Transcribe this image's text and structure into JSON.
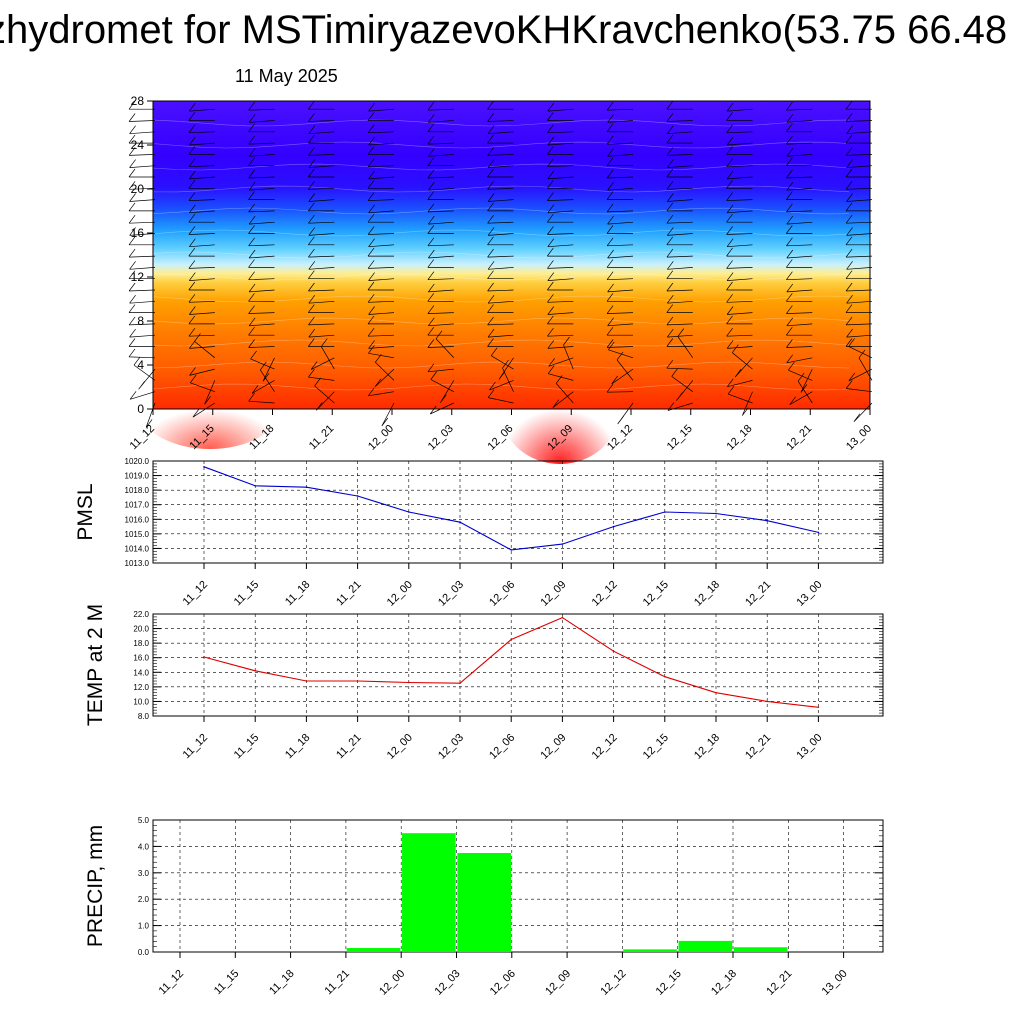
{
  "header": {
    "title": "zhydromet for MSTimiryazevoKHKravchenko(53.75 66.48",
    "date": "11 May 2025"
  },
  "chart_data": [
    {
      "type": "heatmap",
      "name": "vertical-cross-section",
      "categories": [
        "11_12",
        "11_15",
        "11_18",
        "11_21",
        "12_00",
        "12_03",
        "12_06",
        "12_09",
        "12_12",
        "12_15",
        "12_18",
        "12_21",
        "13_00"
      ],
      "yticks": [
        0,
        4,
        8,
        12,
        16,
        20,
        24,
        28
      ],
      "ylim": [
        0,
        28
      ],
      "colors": {
        "low": "#ff2a00",
        "mid": "#ffee90",
        "high": "#3300ff"
      }
    },
    {
      "type": "line",
      "ylabel": "PMSL",
      "categories": [
        "11_12",
        "11_15",
        "11_18",
        "11_21",
        "12_00",
        "12_03",
        "12_06",
        "12_09",
        "12_12",
        "12_15",
        "12_18",
        "12_21",
        "13_00"
      ],
      "values": [
        1019.6,
        1018.3,
        1018.2,
        1017.6,
        1016.5,
        1015.8,
        1013.9,
        1014.3,
        1015.5,
        1016.5,
        1016.4,
        1015.9,
        1015.1
      ],
      "yticks": [
        "1013.0",
        "1014.0",
        "1015.0",
        "1016.0",
        "1017.0",
        "1018.0",
        "1019.0",
        "1020.0"
      ],
      "ylim": [
        1013,
        1020
      ],
      "color": "#0000cc",
      "grid": true
    },
    {
      "type": "line",
      "ylabel": "TEMP at 2 M",
      "categories": [
        "11_12",
        "11_15",
        "11_18",
        "11_21",
        "12_00",
        "12_03",
        "12_06",
        "12_09",
        "12_12",
        "12_15",
        "12_18",
        "12_21",
        "13_00"
      ],
      "values": [
        16.1,
        14.2,
        12.8,
        12.8,
        12.6,
        12.5,
        18.5,
        21.5,
        16.9,
        13.4,
        11.2,
        10.0,
        9.2
      ],
      "yticks": [
        "8.0",
        "10.0",
        "12.0",
        "14.0",
        "16.0",
        "18.0",
        "20.0",
        "22.0"
      ],
      "ylim": [
        8,
        22
      ],
      "color": "#dd0000",
      "grid": true
    },
    {
      "type": "bar",
      "ylabel": "PRECIP, mm",
      "categories": [
        "11_12",
        "11_15",
        "11_18",
        "11_21",
        "12_00",
        "12_03",
        "12_06",
        "12_09",
        "12_12",
        "12_15",
        "12_18",
        "12_21",
        "13_00"
      ],
      "values": [
        0,
        0,
        0,
        0.15,
        4.5,
        3.75,
        0,
        0,
        0.1,
        0.42,
        0.18,
        0,
        0
      ],
      "yticks": [
        "0.0",
        "1.0",
        "2.0",
        "3.0",
        "4.0",
        "5.0"
      ],
      "ylim": [
        0,
        5
      ],
      "color": "#00ff00",
      "grid": true
    }
  ]
}
